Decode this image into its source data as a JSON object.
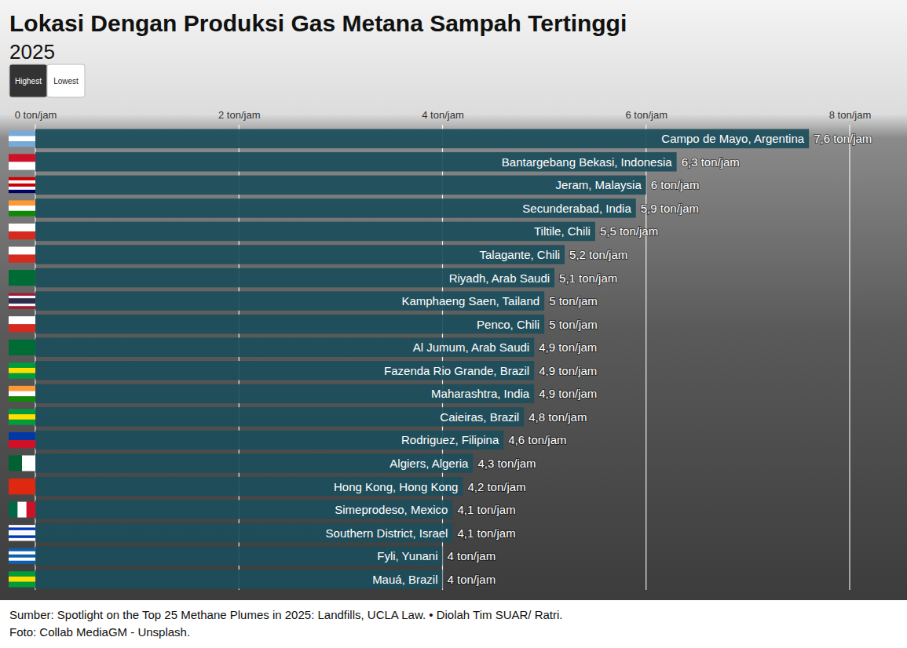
{
  "chart_data": {
    "type": "bar",
    "orientation": "horizontal",
    "title": "Lokasi Dengan Produksi Gas Metana Sampah Tertinggi",
    "subtitle": "2025",
    "toggle": [
      "Highest",
      "Lowest"
    ],
    "categories": [
      "Campo de Mayo, Argentina",
      "Bantargebang Bekasi, Indonesia",
      "Jeram, Malaysia",
      "Secunderabad, India",
      "Tiltile, Chili",
      "Talagante, Chili",
      "Riyadh, Arab Saudi",
      "Kamphaeng Saen, Tailand",
      "Penco, Chili",
      "Al Jumum, Arab Saudi",
      "Fazenda Rio Grande, Brazil",
      "Maharashtra, India",
      "Caieiras, Brazil",
      "Rodriguez, Filipina",
      "Algiers, Algeria",
      "Hong Kong, Hong Kong",
      "Simeprodeso, Mexico",
      "Southern District, Israel",
      "Fyli, Yunani",
      "Mauá, Brazil"
    ],
    "values": [
      7.6,
      6.3,
      6,
      5.9,
      5.5,
      5.2,
      5.1,
      5,
      5,
      4.9,
      4.9,
      4.9,
      4.8,
      4.6,
      4.3,
      4.2,
      4.1,
      4.1,
      4,
      4
    ],
    "value_labels": [
      "7,6 ton/jam",
      "6,3 ton/jam",
      "6 ton/jam",
      "5,9 ton/jam",
      "5,5 ton/jam",
      "5,2 ton/jam",
      "5,1 ton/jam",
      "5 ton/jam",
      "5 ton/jam",
      "4,9 ton/jam",
      "4,9 ton/jam",
      "4,9 ton/jam",
      "4,8 ton/jam",
      "4,6 ton/jam",
      "4,3 ton/jam",
      "4,2 ton/jam",
      "4,1 ton/jam",
      "4,1 ton/jam",
      "4 ton/jam",
      "4 ton/jam"
    ],
    "data_labels": true,
    "color": "#1d4e5b",
    "xlim": [
      0,
      8
    ],
    "xticks": [
      {
        "value": 0,
        "label": "0 ton/jam"
      },
      {
        "value": 2,
        "label": "2 ton/jam"
      },
      {
        "value": 4,
        "label": "4 ton/jam"
      },
      {
        "value": 6,
        "label": "6 ton/jam"
      },
      {
        "value": 8,
        "label": "8 ton/jam"
      }
    ],
    "grid": true,
    "source": [
      "Sumber: Spotlight on the Top 25 Methane Plumes in 2025: Landfills, UCLA Law. • Diolah Tim SUAR/ Ratri.",
      "Foto: Collab MediaGM - Unsplash."
    ]
  }
}
